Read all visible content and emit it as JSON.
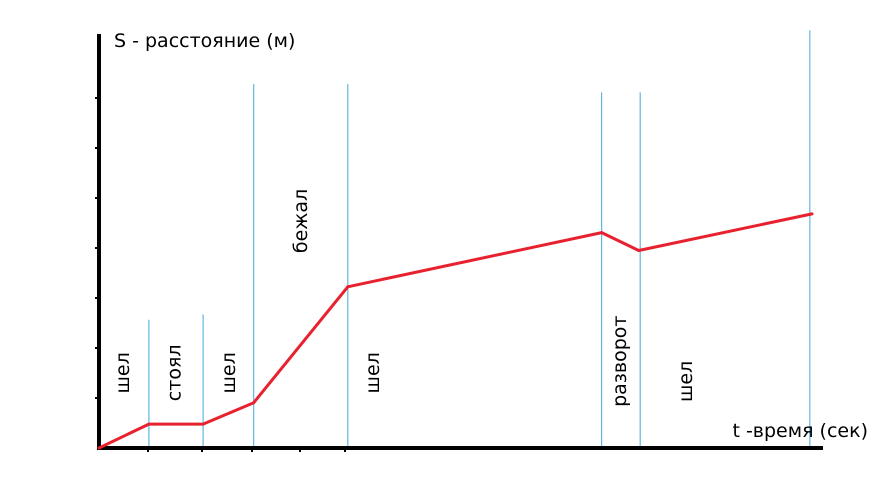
{
  "chart_data": {
    "type": "line",
    "title": "",
    "ylabel": "S - расстояние (м)",
    "xlabel": "t -время (сек)",
    "grid": false,
    "legend": "none",
    "colors": {
      "line": "#e8212e",
      "divider": "#3fa9d8",
      "axis": "#000000"
    },
    "xlim": [
      0,
      100
    ],
    "ylim": [
      0,
      100
    ],
    "series": [
      {
        "name": "",
        "x": [
          0,
          7,
          14.6,
          21.7,
          34.9,
          70.5,
          75.7,
          100
        ],
        "y": [
          0,
          6.4,
          6.4,
          12.1,
          43.1,
          57.6,
          52.8,
          62.6
        ]
      }
    ],
    "dividers": [
      {
        "x": 7,
        "top": 34.3
      },
      {
        "x": 14.6,
        "top": 35.7
      },
      {
        "x": 21.7,
        "top": 97.3
      },
      {
        "x": 34.9,
        "top": 97.3
      },
      {
        "x": 70.5,
        "top": 95.1
      },
      {
        "x": 75.9,
        "top": 95.1
      },
      {
        "x": 99.7,
        "top": 111.7
      }
    ],
    "annotations": [
      {
        "text": "шел",
        "x": 3.4,
        "y": 20.1
      },
      {
        "text": "стоял",
        "x": 10.6,
        "y": 20.1
      },
      {
        "text": "шел",
        "x": 18.2,
        "y": 20.1
      },
      {
        "text": "бежал",
        "x": 28.3,
        "y": 60.7
      },
      {
        "text": "шел",
        "x": 38.4,
        "y": 20.1
      },
      {
        "text": "разворот",
        "x": 73.1,
        "y": 23.2
      },
      {
        "text": "шел",
        "x": 82.3,
        "y": 17.8
      }
    ]
  }
}
